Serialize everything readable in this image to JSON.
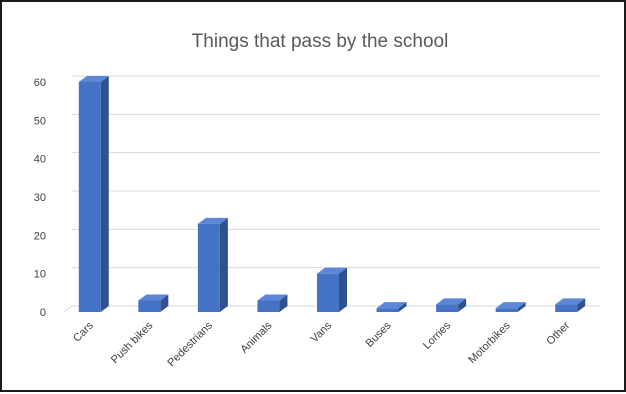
{
  "chart_data": {
    "type": "bar",
    "style": "3d-column",
    "title": "Things that pass by the school",
    "xlabel": "",
    "ylabel": "",
    "categories": [
      "Cars",
      "Push bikes",
      "Pedestrians",
      "Animals",
      "Vans",
      "Buses",
      "Lorries",
      "Motorbikes",
      "Other"
    ],
    "values": [
      60,
      3,
      23,
      3,
      10,
      1,
      2,
      1,
      2
    ],
    "ylim": [
      0,
      60
    ],
    "yticks": [
      0,
      10,
      20,
      30,
      40,
      50,
      60
    ],
    "grid": true,
    "legend": "none",
    "colors": {
      "bar_front": "#4472C4",
      "bar_side": "#2F528F",
      "bar_top": "#5B87D6",
      "grid": "#d9d9d9",
      "text": "#404040",
      "title": "#595959"
    }
  }
}
